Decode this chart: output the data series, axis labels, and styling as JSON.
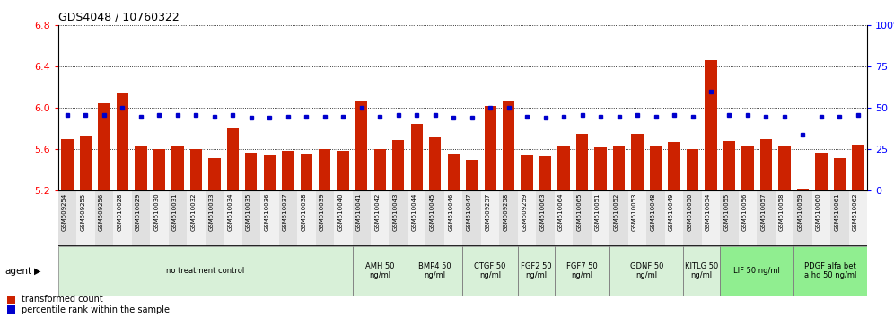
{
  "title": "GDS4048 / 10760322",
  "samples": [
    "GSM509254",
    "GSM509255",
    "GSM509256",
    "GSM510028",
    "GSM510029",
    "GSM510030",
    "GSM510031",
    "GSM510032",
    "GSM510033",
    "GSM510034",
    "GSM510035",
    "GSM510036",
    "GSM510037",
    "GSM510038",
    "GSM510039",
    "GSM510040",
    "GSM510041",
    "GSM510042",
    "GSM510043",
    "GSM510044",
    "GSM510045",
    "GSM510046",
    "GSM510047",
    "GSM509257",
    "GSM509258",
    "GSM509259",
    "GSM510063",
    "GSM510064",
    "GSM510065",
    "GSM510051",
    "GSM510052",
    "GSM510053",
    "GSM510048",
    "GSM510049",
    "GSM510050",
    "GSM510054",
    "GSM510055",
    "GSM510056",
    "GSM510057",
    "GSM510058",
    "GSM510059",
    "GSM510060",
    "GSM510061",
    "GSM510062"
  ],
  "bar_values": [
    5.7,
    5.73,
    6.05,
    6.15,
    5.63,
    5.6,
    5.63,
    5.6,
    5.52,
    5.8,
    5.57,
    5.55,
    5.59,
    5.56,
    5.6,
    5.59,
    6.07,
    5.6,
    5.69,
    5.85,
    5.72,
    5.56,
    5.5,
    6.02,
    6.07,
    5.55,
    5.53,
    5.63,
    5.75,
    5.62,
    5.63,
    5.75,
    5.63,
    5.67,
    5.6,
    6.46,
    5.68,
    5.63,
    5.7,
    5.63,
    5.22,
    5.57,
    5.52,
    5.65
  ],
  "percentile_values": [
    46,
    46,
    46,
    50,
    45,
    46,
    46,
    46,
    45,
    46,
    44,
    44,
    45,
    45,
    45,
    45,
    50,
    45,
    46,
    46,
    46,
    44,
    44,
    50,
    50,
    45,
    44,
    45,
    46,
    45,
    45,
    46,
    45,
    46,
    45,
    60,
    46,
    46,
    45,
    45,
    34,
    45,
    45,
    46
  ],
  "ylim_left": [
    5.2,
    6.8
  ],
  "ylim_right": [
    0,
    100
  ],
  "yticks_left": [
    5.2,
    5.6,
    6.0,
    6.4,
    6.8
  ],
  "yticks_right": [
    0,
    25,
    50,
    75,
    100
  ],
  "bar_color": "#cc2200",
  "dot_color": "#0000cc",
  "agent_groups": [
    {
      "label": "no treatment control",
      "start": 0,
      "end": 16,
      "color": "#d8f0d8"
    },
    {
      "label": "AMH 50\nng/ml",
      "start": 16,
      "end": 19,
      "color": "#d8f0d8"
    },
    {
      "label": "BMP4 50\nng/ml",
      "start": 19,
      "end": 22,
      "color": "#d8f0d8"
    },
    {
      "label": "CTGF 50\nng/ml",
      "start": 22,
      "end": 25,
      "color": "#d8f0d8"
    },
    {
      "label": "FGF2 50\nng/ml",
      "start": 25,
      "end": 27,
      "color": "#d8f0d8"
    },
    {
      "label": "FGF7 50\nng/ml",
      "start": 27,
      "end": 30,
      "color": "#d8f0d8"
    },
    {
      "label": "GDNF 50\nng/ml",
      "start": 30,
      "end": 34,
      "color": "#d8f0d8"
    },
    {
      "label": "KITLG 50\nng/ml",
      "start": 34,
      "end": 36,
      "color": "#d8f0d8"
    },
    {
      "label": "LIF 50 ng/ml",
      "start": 36,
      "end": 40,
      "color": "#90ee90"
    },
    {
      "label": "PDGF alfa bet\na hd 50 ng/ml",
      "start": 40,
      "end": 44,
      "color": "#90ee90"
    }
  ],
  "legend_items": [
    {
      "color": "#cc2200",
      "label": "transformed count"
    },
    {
      "color": "#0000cc",
      "label": "percentile rank within the sample"
    }
  ]
}
